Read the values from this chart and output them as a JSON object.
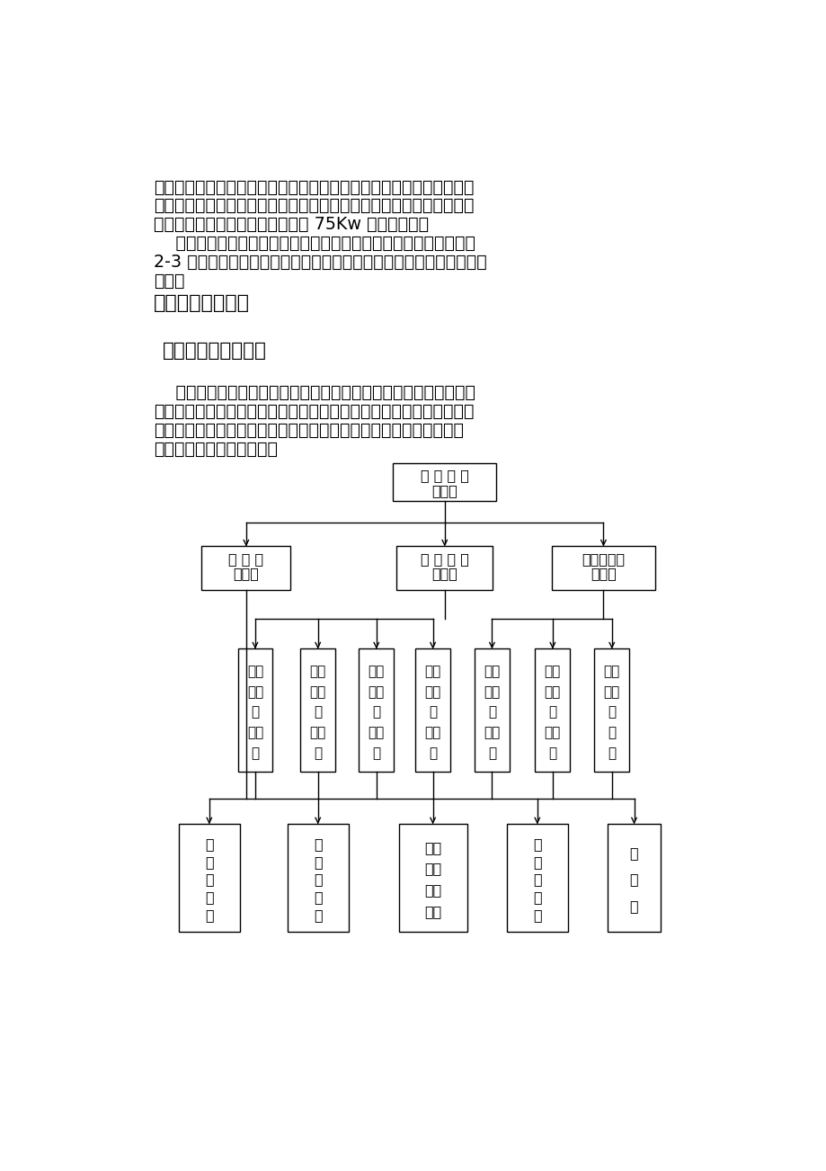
{
  "bg_color": "#ffffff",
  "text_color": "#000000",
  "para1_lines": [
    "系统、空气压缩机。喷粉桩机由液压步履式底架、井架和导向加减压机",
    "构、钻机传动系统、钻具、液压系统、喷粉系统、电器系统和自动计量",
    "打印仪等部分组成。一台钻机配备 75Kw 的发电机组。",
    "    根据本合同段工程数量，拟组建一个施工队伍，其下根据需要分成",
    "2-3 个施工班组，施工队伍中配置适当的机械设备进行施工场地的平整",
    "清理。"
  ],
  "heading1": "三、施工总体部署",
  "heading2": "（一）项目组织机构",
  "para2_lines": [
    "    我标段为了保证粉喷桩软基处理工程的施工质量，加快施工进度，",
    "实现全面机械化施工，组建了完整的项目管理班子。为了施工队伍较好",
    "的配合项目部的管理工作，拟要求施工队伍组建下页图所示的施工班",
    "子。具体组织机构见下图："
  ],
  "l1_title": "项 目 经 理",
  "l1_name": "龙运卫",
  "l2_titles": [
    "财 务 科",
    "项 目 总 工",
    "项目副经理"
  ],
  "l2_names": [
    "闫晓平",
    "高腾波",
    "李木林"
  ],
  "l3_line1": [
    "综合",
    "质量",
    "工程",
    "材料",
    "计划",
    "工程",
    "工程"
  ],
  "l3_line2": [
    "办公",
    "安全",
    "技术",
    "设备",
    "统计",
    "试验",
    "测量"
  ],
  "l3_line3": [
    "室",
    "科",
    "科",
    "科",
    "科",
    "室",
    "科"
  ],
  "l3_name1": [
    "黄明",
    "朱永",
    "梁代",
    "魏振",
    "陈兴",
    "陈新",
    "陈"
  ],
  "l3_name2": [
    "新",
    "平",
    "斌",
    "华",
    "红",
    "刚",
    "冗"
  ],
  "l4_texts": [
    [
      "路基施工队",
      "路基\n施工队"
    ],
    [
      "桥梁施工队",
      "桥梁\n施工队"
    ],
    [
      "涵洞（通道）施工",
      "涵洞\n（通道）\n施工"
    ],
    [
      "软基施工队",
      "软基\n施工队"
    ],
    [
      "加工厂",
      "加工\n厂"
    ]
  ]
}
